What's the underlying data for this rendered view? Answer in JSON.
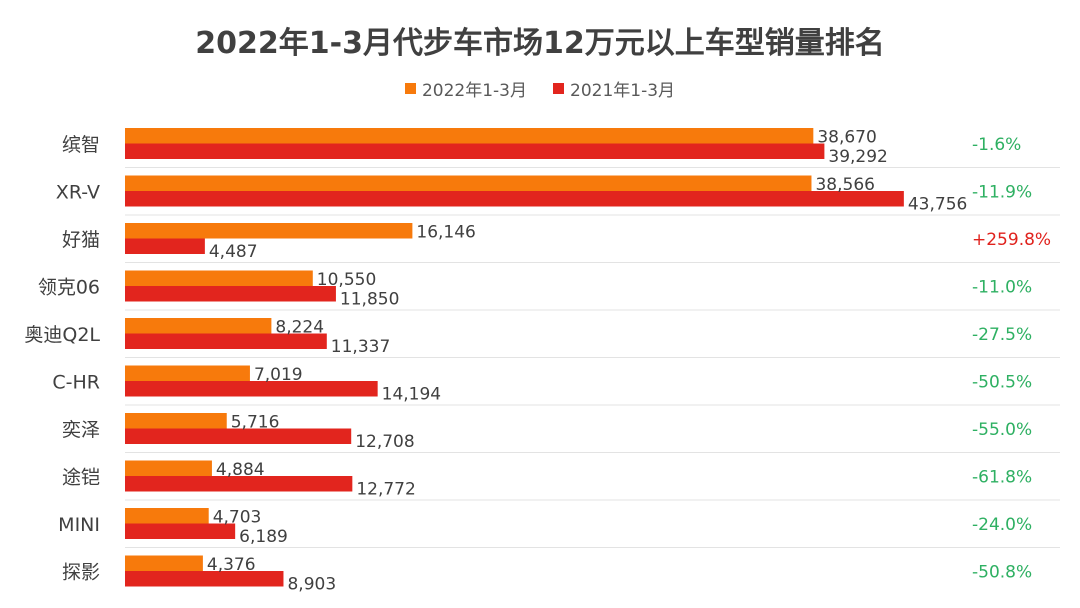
{
  "chart_data": {
    "type": "bar",
    "orientation": "horizontal",
    "title": "2022年1-3月代步车市场12万元以上车型销量排名",
    "categories": [
      "缤智",
      "XR-V",
      "好猫",
      "领克06",
      "奥迪Q2L",
      "C-HR",
      "奕泽",
      "途铠",
      "MINI",
      "探影"
    ],
    "series": [
      {
        "name": "2022年1-3月",
        "color": "#f77a0c",
        "values": [
          38670,
          38566,
          16146,
          10550,
          8224,
          7019,
          5716,
          4884,
          4703,
          4376
        ],
        "labels": [
          "38,670",
          "38,566",
          "16,146",
          "10,550",
          "8,224",
          "7,019",
          "5,716",
          "4,884",
          "4,703",
          "4,376"
        ]
      },
      {
        "name": "2021年1-3月",
        "color": "#e2251e",
        "values": [
          39292,
          43756,
          4487,
          11850,
          11337,
          14194,
          12708,
          12772,
          6189,
          8903
        ],
        "labels": [
          "39,292",
          "43,756",
          "4,487",
          "11,850",
          "11,337",
          "14,194",
          "12,708",
          "12,772",
          "6,189",
          "8,903"
        ]
      }
    ],
    "changes": [
      "-1.6%",
      "-11.9%",
      "+259.8%",
      "-11.0%",
      "-27.5%",
      "-50.5%",
      "-55.0%",
      "-61.8%",
      "-24.0%",
      "-50.8%"
    ],
    "change_colors": {
      "positive": "#e0221d",
      "negative": "#2eb062"
    },
    "xlim": [
      0,
      50000
    ],
    "legend_position": "top-center",
    "grid": false,
    "row_separators": true
  }
}
